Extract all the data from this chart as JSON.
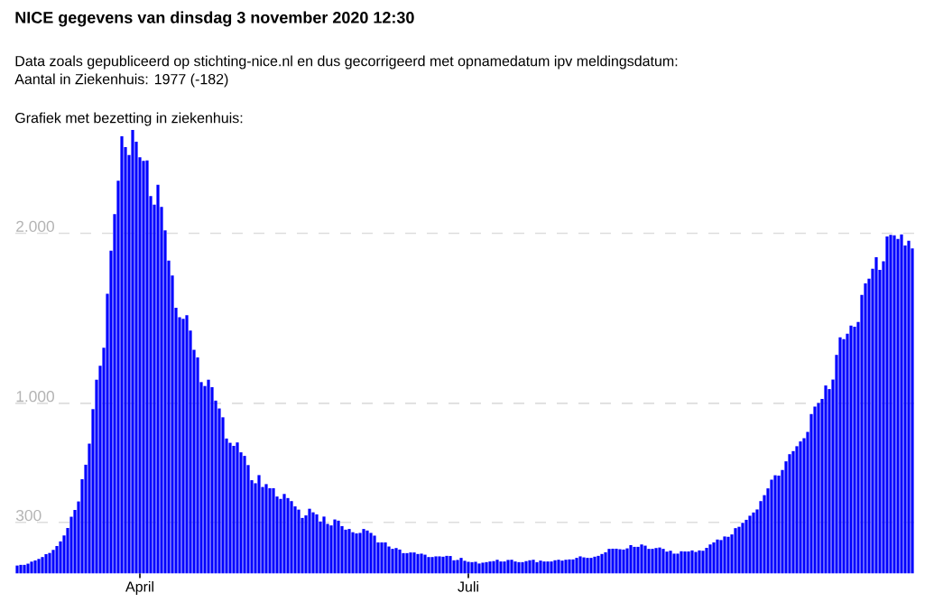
{
  "chart_data": {
    "type": "bar",
    "title": "NICE gegevens van dinsdag 3 november 2020 12:30",
    "subtitle": "Data zoals gepubliceerd op stichting-nice.nl en dus gecorrigeerd met opnamedatum ipv meldingsdatum:",
    "annotations": [
      "Aantal in Ziekenhuis: 1977 (-182)",
      "Grafiek met bezetting in ziekenhuis:"
    ],
    "color": "#0000ff",
    "grid": "y",
    "xlim": [
      "2020-02-26T12:00",
      "2020-11-01T12:00"
    ],
    "xticks": [
      {
        "value": "2020-04-01",
        "label": "April"
      },
      {
        "value": "2020-07-01",
        "label": "Juli"
      }
    ],
    "ylim": [
      0,
      2608
    ],
    "yticks": [
      300,
      {
        "value": 1000,
        "label": "1.000"
      },
      {
        "value": 2000,
        "label": "2.000"
      }
    ],
    "x": [
      "2020-02-27",
      "2020-02-28",
      "2020-02-29",
      "2020-03-01",
      "2020-03-02",
      "2020-03-03",
      "2020-03-04",
      "2020-03-05",
      "2020-03-06",
      "2020-03-07",
      "2020-03-08",
      "2020-03-09",
      "2020-03-10",
      "2020-03-11",
      "2020-03-12",
      "2020-03-13",
      "2020-03-14",
      "2020-03-15",
      "2020-03-16",
      "2020-03-17",
      "2020-03-18",
      "2020-03-19",
      "2020-03-20",
      "2020-03-21",
      "2020-03-22",
      "2020-03-23",
      "2020-03-24",
      "2020-03-25",
      "2020-03-26",
      "2020-03-27",
      "2020-03-28",
      "2020-03-29",
      "2020-03-30",
      "2020-03-31",
      "2020-04-01",
      "2020-04-02",
      "2020-04-03",
      "2020-04-04",
      "2020-04-05",
      "2020-04-06",
      "2020-04-07",
      "2020-04-08",
      "2020-04-09",
      "2020-04-10",
      "2020-04-11",
      "2020-04-12",
      "2020-04-13",
      "2020-04-14",
      "2020-04-15",
      "2020-04-16",
      "2020-04-17",
      "2020-04-18",
      "2020-04-19",
      "2020-04-20",
      "2020-04-21",
      "2020-04-22",
      "2020-04-23",
      "2020-04-24",
      "2020-04-25",
      "2020-04-26",
      "2020-04-27",
      "2020-04-28",
      "2020-04-29",
      "2020-04-30",
      "2020-05-01",
      "2020-05-02",
      "2020-05-03",
      "2020-05-04",
      "2020-05-05",
      "2020-05-06",
      "2020-05-07",
      "2020-05-08",
      "2020-05-09",
      "2020-05-10",
      "2020-05-11",
      "2020-05-12",
      "2020-05-13",
      "2020-05-14",
      "2020-05-15",
      "2020-05-16",
      "2020-05-17",
      "2020-05-18",
      "2020-05-19",
      "2020-05-20",
      "2020-05-21",
      "2020-05-22",
      "2020-05-23",
      "2020-05-24",
      "2020-05-25",
      "2020-05-26",
      "2020-05-27",
      "2020-05-28",
      "2020-05-29",
      "2020-05-30",
      "2020-05-31",
      "2020-06-01",
      "2020-06-02",
      "2020-06-03",
      "2020-06-04",
      "2020-06-05",
      "2020-06-06",
      "2020-06-07",
      "2020-06-08",
      "2020-06-09",
      "2020-06-10",
      "2020-06-11",
      "2020-06-12",
      "2020-06-13",
      "2020-06-14",
      "2020-06-15",
      "2020-06-16",
      "2020-06-17",
      "2020-06-18",
      "2020-06-19",
      "2020-06-20",
      "2020-06-21",
      "2020-06-22",
      "2020-06-23",
      "2020-06-24",
      "2020-06-25",
      "2020-06-26",
      "2020-06-27",
      "2020-06-28",
      "2020-06-29",
      "2020-06-30",
      "2020-07-01",
      "2020-07-02",
      "2020-07-03",
      "2020-07-04",
      "2020-07-05",
      "2020-07-06",
      "2020-07-07",
      "2020-07-08",
      "2020-07-09",
      "2020-07-10",
      "2020-07-11",
      "2020-07-12",
      "2020-07-13",
      "2020-07-14",
      "2020-07-15",
      "2020-07-16",
      "2020-07-17",
      "2020-07-18",
      "2020-07-19",
      "2020-07-20",
      "2020-07-21",
      "2020-07-22",
      "2020-07-23",
      "2020-07-24",
      "2020-07-25",
      "2020-07-26",
      "2020-07-27",
      "2020-07-28",
      "2020-07-29",
      "2020-07-30",
      "2020-07-31",
      "2020-08-01",
      "2020-08-02",
      "2020-08-03",
      "2020-08-04",
      "2020-08-05",
      "2020-08-06",
      "2020-08-07",
      "2020-08-08",
      "2020-08-09",
      "2020-08-10",
      "2020-08-11",
      "2020-08-12",
      "2020-08-13",
      "2020-08-14",
      "2020-08-15",
      "2020-08-16",
      "2020-08-17",
      "2020-08-18",
      "2020-08-19",
      "2020-08-20",
      "2020-08-21",
      "2020-08-22",
      "2020-08-23",
      "2020-08-24",
      "2020-08-25",
      "2020-08-26",
      "2020-08-27",
      "2020-08-28",
      "2020-08-29",
      "2020-08-30",
      "2020-08-31",
      "2020-09-01",
      "2020-09-02",
      "2020-09-03",
      "2020-09-04",
      "2020-09-05",
      "2020-09-06",
      "2020-09-07",
      "2020-09-08",
      "2020-09-09",
      "2020-09-10",
      "2020-09-11",
      "2020-09-12",
      "2020-09-13",
      "2020-09-14",
      "2020-09-15",
      "2020-09-16",
      "2020-09-17",
      "2020-09-18",
      "2020-09-19",
      "2020-09-20",
      "2020-09-21",
      "2020-09-22",
      "2020-09-23",
      "2020-09-24",
      "2020-09-25",
      "2020-09-26",
      "2020-09-27",
      "2020-09-28",
      "2020-09-29",
      "2020-09-30",
      "2020-10-01",
      "2020-10-02",
      "2020-10-03",
      "2020-10-04",
      "2020-10-05",
      "2020-10-06",
      "2020-10-07",
      "2020-10-08",
      "2020-10-09",
      "2020-10-10",
      "2020-10-11",
      "2020-10-12",
      "2020-10-13",
      "2020-10-14",
      "2020-10-15",
      "2020-10-16",
      "2020-10-17",
      "2020-10-18",
      "2020-10-19",
      "2020-10-20",
      "2020-10-21",
      "2020-10-22",
      "2020-10-23",
      "2020-10-24",
      "2020-10-25",
      "2020-10-26",
      "2020-10-27",
      "2020-10-28",
      "2020-10-29",
      "2020-10-30",
      "2020-10-31",
      "2020-11-01"
    ],
    "values": [
      46,
      50,
      50,
      57,
      69,
      76,
      85,
      96,
      113,
      120,
      138,
      161,
      188,
      223,
      267,
      333,
      373,
      423,
      554,
      639,
      763,
      966,
      1139,
      1221,
      1327,
      1644,
      1898,
      2113,
      2309,
      2571,
      2507,
      2461,
      2608,
      2539,
      2447,
      2426,
      2429,
      2219,
      2169,
      2286,
      2155,
      2017,
      1840,
      1752,
      1562,
      1506,
      1497,
      1518,
      1428,
      1315,
      1270,
      1125,
      1102,
      1139,
      1095,
      1016,
      970,
      918,
      793,
      768,
      750,
      770,
      712,
      691,
      637,
      548,
      530,
      578,
      508,
      525,
      501,
      501,
      452,
      438,
      467,
      443,
      425,
      394,
      375,
      326,
      341,
      380,
      359,
      347,
      305,
      334,
      291,
      282,
      317,
      310,
      278,
      257,
      261,
      242,
      235,
      238,
      261,
      252,
      238,
      222,
      182,
      182,
      182,
      158,
      144,
      149,
      140,
      119,
      119,
      123,
      123,
      114,
      116,
      110,
      96,
      96,
      100,
      100,
      98,
      103,
      102,
      77,
      79,
      91,
      74,
      68,
      66,
      68,
      58,
      63,
      66,
      70,
      72,
      80,
      70,
      70,
      79,
      80,
      70,
      66,
      66,
      72,
      77,
      80,
      66,
      75,
      70,
      70,
      70,
      77,
      80,
      75,
      80,
      82,
      82,
      91,
      100,
      94,
      91,
      91,
      98,
      103,
      114,
      124,
      144,
      145,
      145,
      142,
      140,
      147,
      166,
      156,
      156,
      170,
      163,
      144,
      144,
      149,
      152,
      144,
      128,
      133,
      116,
      116,
      130,
      129,
      129,
      135,
      126,
      135,
      133,
      150,
      170,
      182,
      199,
      196,
      217,
      215,
      229,
      266,
      274,
      297,
      315,
      339,
      358,
      376,
      425,
      460,
      500,
      551,
      577,
      575,
      608,
      659,
      701,
      719,
      748,
      776,
      795,
      832,
      937,
      981,
      1002,
      1026,
      1105,
      1084,
      1140,
      1285,
      1388,
      1378,
      1409,
      1458,
      1451,
      1479,
      1638,
      1705,
      1734,
      1792,
      1860,
      1785,
      1836,
      1981,
      1991,
      1988,
      1967,
      1993,
      1928,
      1956,
      1911
    ]
  }
}
